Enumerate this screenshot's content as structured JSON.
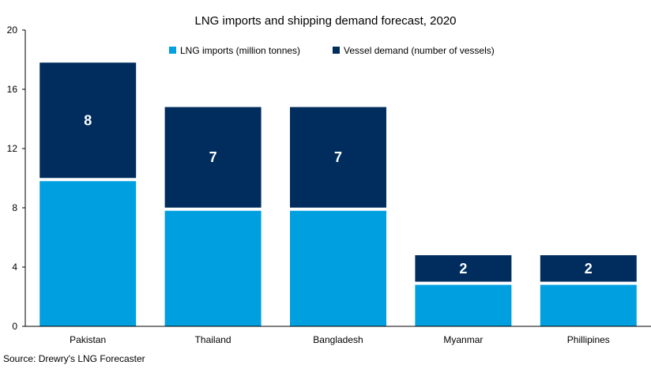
{
  "chart_data": {
    "type": "bar",
    "stacked": true,
    "title": "LNG imports and shipping demand forecast, 2020",
    "categories": [
      "Pakistan",
      "Thailand",
      "Bangladesh",
      "Myanmar",
      "Phillipines"
    ],
    "series": [
      {
        "name": "LNG imports (million tonnes)",
        "color": "#009FDF",
        "values": [
          9.8,
          7.8,
          7.8,
          2.8,
          2.8
        ]
      },
      {
        "name": "Vessel demand (number of vessels)",
        "color": "#002D5E",
        "values": [
          8,
          7,
          7,
          2,
          2
        ],
        "data_labels": [
          "8",
          "7",
          "7",
          "2",
          "2"
        ]
      }
    ],
    "yticks": [
      "0",
      "4",
      "8",
      "12",
      "16",
      "20"
    ],
    "ylim": [
      0,
      20
    ],
    "grid": false,
    "legend_position": "top",
    "source": "Source: Drewry's LNG Forecaster"
  }
}
